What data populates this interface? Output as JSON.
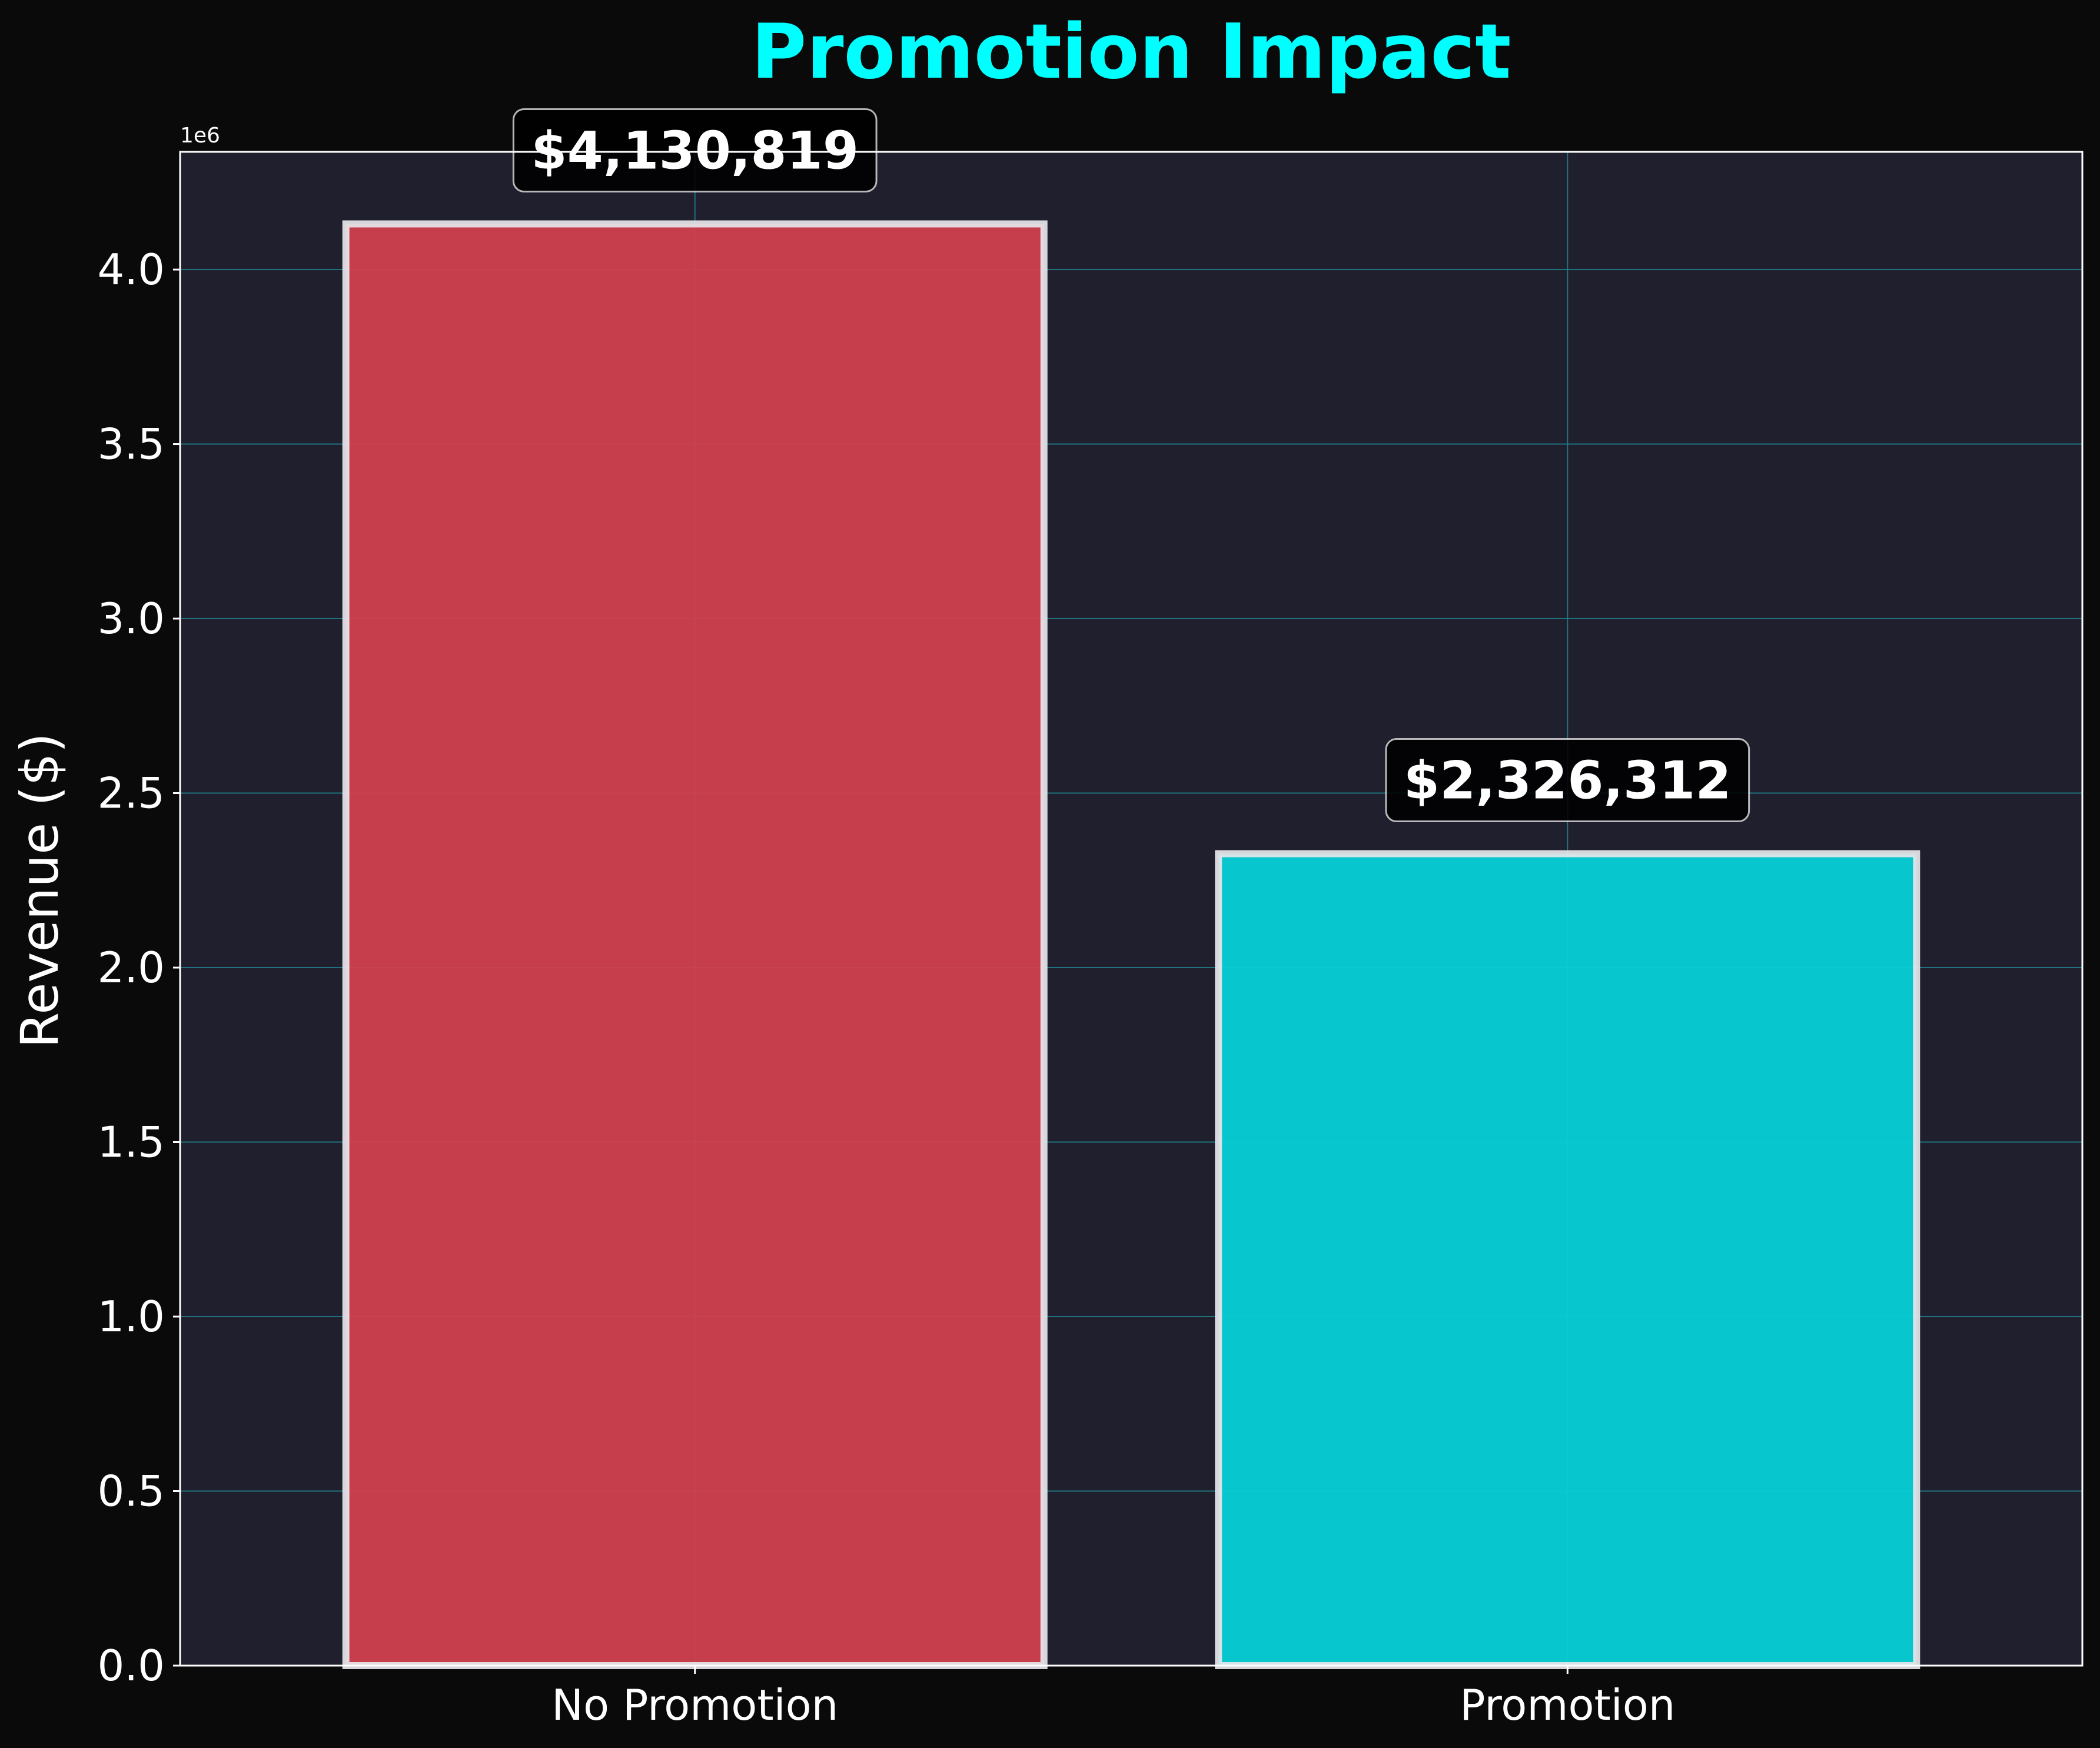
{
  "chart_data": {
    "type": "bar",
    "title": "Promotion Impact",
    "xlabel": "",
    "ylabel": "Revenue ($)",
    "categories": [
      "No Promotion",
      "Promotion"
    ],
    "values": [
      4130819,
      2326312
    ],
    "value_labels": [
      "$4,130,819",
      "$2,326,312"
    ],
    "bar_colors": [
      "#d0404e",
      "#06d0d6"
    ],
    "ylim": [
      0,
      4337360
    ],
    "yticks": [
      0,
      500000,
      1000000,
      1500000,
      2000000,
      2500000,
      3000000,
      3500000,
      4000000
    ],
    "ytick_labels": [
      "0.0",
      "0.5",
      "1.0",
      "1.5",
      "2.0",
      "2.5",
      "3.0",
      "3.5",
      "4.0"
    ],
    "y_offset_label": "1e6",
    "grid": true,
    "legend": "none"
  },
  "colors": {
    "page_background": "#0a0a0a",
    "plot_background": "#1f1f2e",
    "title": "#00ffff",
    "grid": "#1f8a94",
    "bar_edge": "#e6e6ea",
    "text": "#ffffff"
  }
}
